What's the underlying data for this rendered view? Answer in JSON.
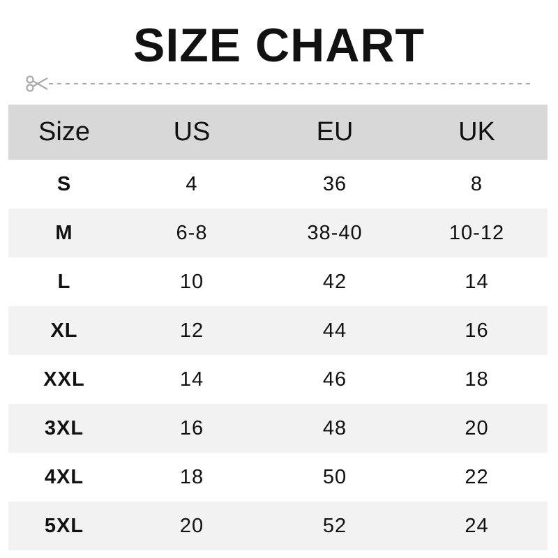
{
  "title": "SIZE CHART",
  "icons": {
    "cut": "scissors-icon"
  },
  "colors": {
    "header_bg": "#d8d8d8",
    "alt_row_bg": "#f2f2f2",
    "cutline": "#aaaaaa"
  },
  "table": {
    "headers": [
      "Size",
      "US",
      "EU",
      "UK"
    ],
    "rows": [
      [
        "S",
        "4",
        "36",
        "8"
      ],
      [
        "M",
        "6-8",
        "38-40",
        "10-12"
      ],
      [
        "L",
        "10",
        "42",
        "14"
      ],
      [
        "XL",
        "12",
        "44",
        "16"
      ],
      [
        "XXL",
        "14",
        "46",
        "18"
      ],
      [
        "3XL",
        "16",
        "48",
        "20"
      ],
      [
        "4XL",
        "18",
        "50",
        "22"
      ],
      [
        "5XL",
        "20",
        "52",
        "24"
      ]
    ]
  }
}
